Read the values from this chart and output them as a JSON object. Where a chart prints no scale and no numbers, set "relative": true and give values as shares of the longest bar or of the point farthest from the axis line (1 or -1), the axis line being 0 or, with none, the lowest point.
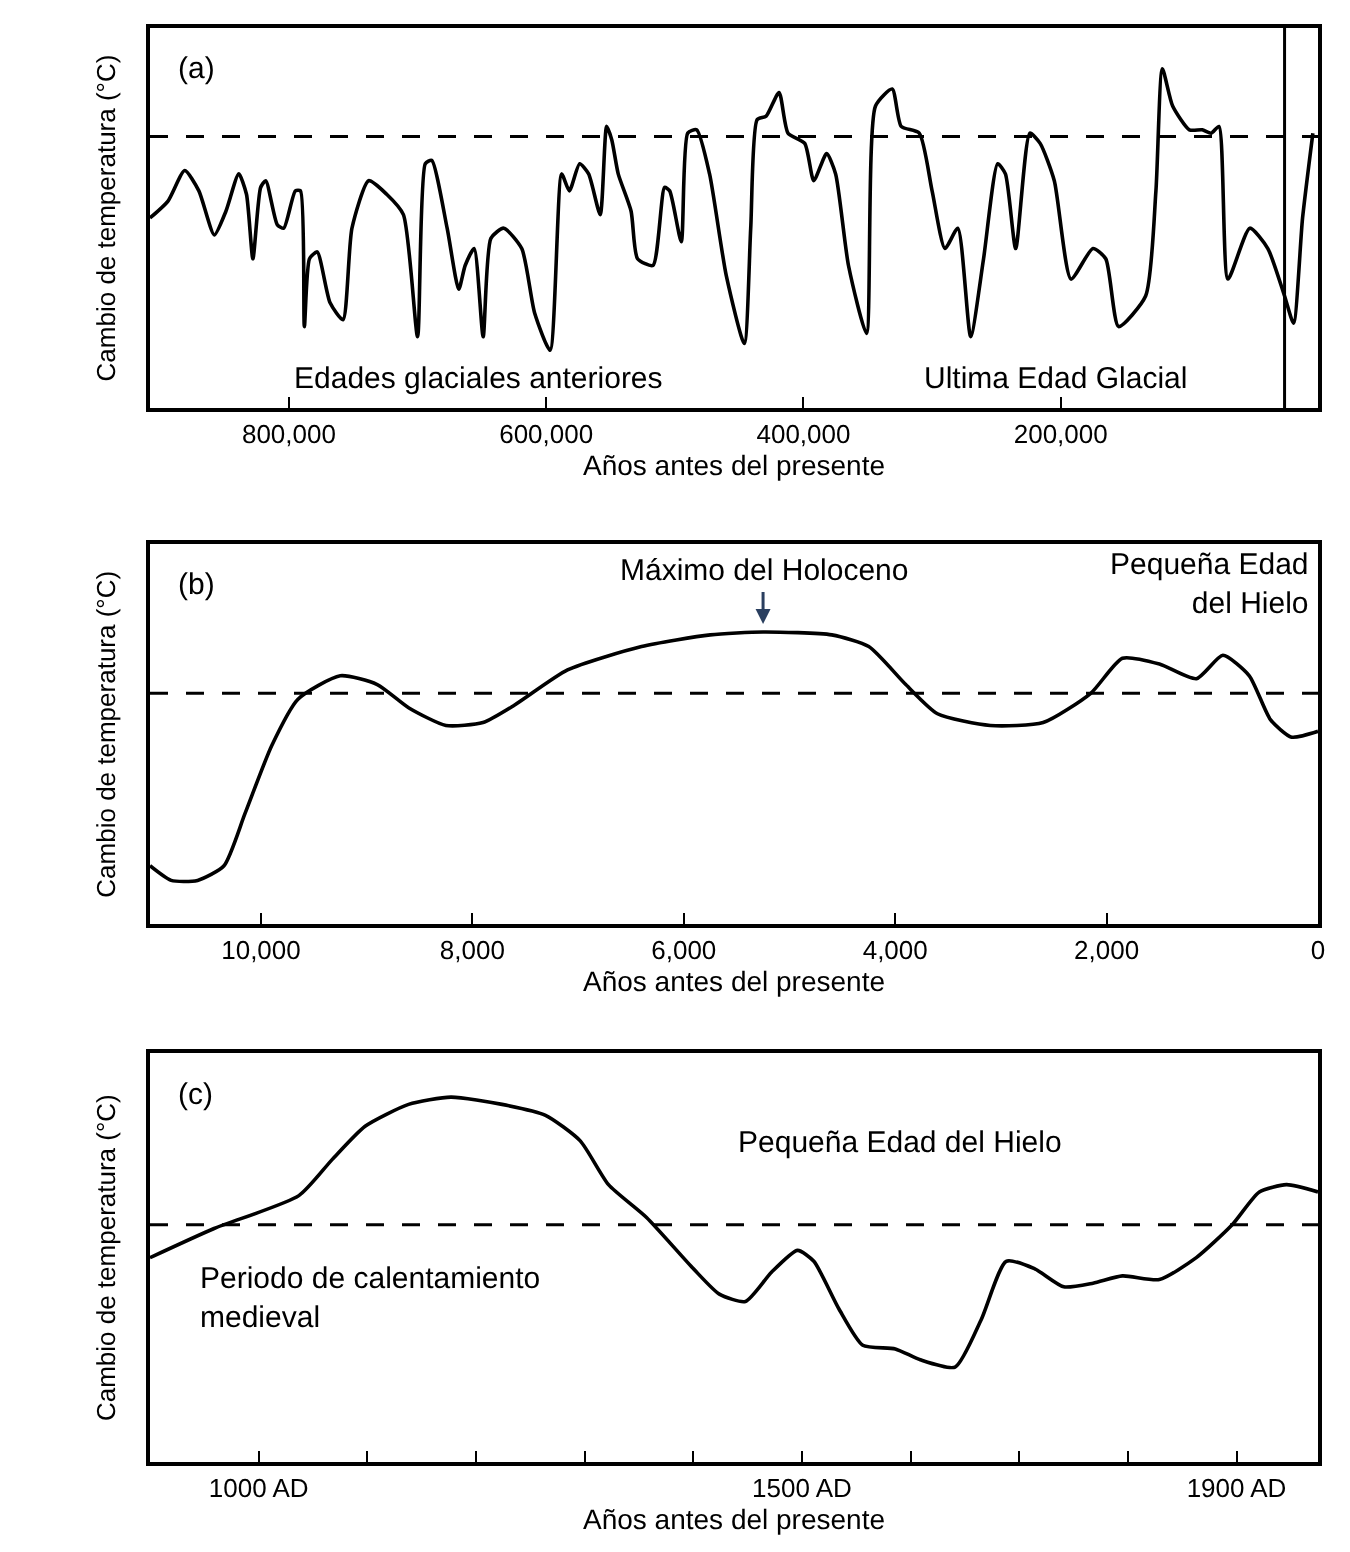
{
  "chart_data": [
    {
      "type": "line",
      "relative": true,
      "xlabel": "Años antes del presente",
      "ylabel": "Cambio de temperatura (°C)",
      "xlim": [
        908000,
        0
      ],
      "xticks": [
        {
          "value": 800000,
          "label": "800,000"
        },
        {
          "value": 600000,
          "label": "600,000"
        },
        {
          "value": 400000,
          "label": "400,000"
        },
        {
          "value": 200000,
          "label": "200,000"
        }
      ],
      "marker": "none",
      "line_style": "solid",
      "annotations": [
        "(a)",
        "Edades glaciales anteriores",
        "Ultima Edad Glacial"
      ],
      "ref_lines": [
        {
          "axis": "y",
          "value": 0.8,
          "line_style": "dashed"
        },
        {
          "axis": "x",
          "value": 26000,
          "line_style": "solid"
        }
      ],
      "series": [
        {
          "color": "#000000",
          "x": [
            908000,
            894000,
            881000,
            870000,
            858000,
            849000,
            839000,
            833000,
            828000,
            822000,
            818000,
            809000,
            804000,
            795000,
            791000,
            788000,
            784000,
            778000,
            768000,
            758000,
            751000,
            738000,
            724000,
            711000,
            700000,
            694000,
            689000,
            677000,
            668000,
            663000,
            656000,
            649000,
            643000,
            633000,
            619000,
            609000,
            597000,
            588000,
            582000,
            574000,
            567000,
            558000,
            553000,
            549000,
            544000,
            534000,
            529000,
            517000,
            508000,
            504000,
            495000,
            490000,
            483000,
            473000,
            460000,
            446000,
            441000,
            436000,
            429000,
            419000,
            412000,
            399000,
            392000,
            382000,
            375000,
            365000,
            351000,
            344000,
            331000,
            324000,
            310000,
            300000,
            290000,
            280000,
            270000,
            260000,
            249000,
            243000,
            235000,
            224000,
            216000,
            205000,
            192000,
            175000,
            165000,
            155000,
            134000,
            126000,
            121000,
            113000,
            100000,
            90000,
            83000,
            77000,
            70000,
            53000,
            39000,
            26000,
            19000,
            12000,
            4000
          ],
          "values": [
            0.56,
            0.61,
            0.7,
            0.64,
            0.51,
            0.58,
            0.69,
            0.63,
            0.44,
            0.65,
            0.67,
            0.54,
            0.53,
            0.64,
            0.64,
            0.24,
            0.44,
            0.46,
            0.31,
            0.26,
            0.53,
            0.67,
            0.63,
            0.57,
            0.21,
            0.72,
            0.73,
            0.53,
            0.35,
            0.42,
            0.47,
            0.21,
            0.5,
            0.53,
            0.47,
            0.28,
            0.17,
            0.69,
            0.64,
            0.72,
            0.69,
            0.57,
            0.83,
            0.79,
            0.69,
            0.58,
            0.44,
            0.42,
            0.65,
            0.64,
            0.49,
            0.81,
            0.82,
            0.69,
            0.39,
            0.19,
            0.53,
            0.85,
            0.86,
            0.93,
            0.81,
            0.78,
            0.67,
            0.75,
            0.69,
            0.42,
            0.22,
            0.89,
            0.94,
            0.83,
            0.81,
            0.64,
            0.47,
            0.53,
            0.21,
            0.44,
            0.72,
            0.69,
            0.47,
            0.81,
            0.78,
            0.67,
            0.38,
            0.47,
            0.44,
            0.24,
            0.33,
            0.64,
            1.0,
            0.89,
            0.82,
            0.82,
            0.81,
            0.83,
            0.38,
            0.53,
            0.47,
            0.33,
            0.25,
            0.56,
            0.81
          ]
        }
      ]
    },
    {
      "type": "line",
      "relative": true,
      "xlabel": "Años antes del presente",
      "ylabel": "Cambio de temperatura (°C)",
      "xlim": [
        11050,
        0
      ],
      "xticks": [
        {
          "value": 10000,
          "label": "10,000"
        },
        {
          "value": 8000,
          "label": "8,000"
        },
        {
          "value": 6000,
          "label": "6,000"
        },
        {
          "value": 4000,
          "label": "4,000"
        },
        {
          "value": 2000,
          "label": "2,000"
        },
        0
      ],
      "marker": "none",
      "line_style": "solid",
      "annotations": [
        "(b)",
        {
          "text": "Máximo del Holoceno",
          "x": 5250,
          "y": 1.0
        },
        "Pequeña Edad\ndel Hielo"
      ],
      "ref_lines": [
        {
          "axis": "y",
          "value": 0.79,
          "line_style": "dashed"
        }
      ],
      "series": [
        {
          "color": "#000000",
          "x": [
            11050,
            10850,
            10600,
            10350,
            10150,
            9900,
            9650,
            9250,
            8900,
            8600,
            8250,
            7900,
            7600,
            7100,
            6400,
            5750,
            5250,
            4600,
            4250,
            3900,
            3600,
            3100,
            2600,
            2150,
            1850,
            1500,
            1150,
            900,
            650,
            450,
            250,
            0
          ],
          "values": [
            0.2,
            0.15,
            0.15,
            0.2,
            0.38,
            0.61,
            0.77,
            0.85,
            0.82,
            0.74,
            0.68,
            0.69,
            0.75,
            0.87,
            0.95,
            0.99,
            1.0,
            0.99,
            0.95,
            0.82,
            0.72,
            0.68,
            0.69,
            0.79,
            0.91,
            0.89,
            0.84,
            0.92,
            0.85,
            0.7,
            0.64,
            0.66
          ]
        }
      ]
    },
    {
      "type": "line",
      "relative": true,
      "xlabel": "Años antes del presente",
      "ylabel": "Cambio de temperatura (°C)",
      "xlim": [
        900,
        1975
      ],
      "xticks": [
        {
          "value": 1000,
          "label": "1000 AD"
        },
        {
          "value": 1100,
          "label": null
        },
        {
          "value": 1200,
          "label": null
        },
        {
          "value": 1300,
          "label": null
        },
        {
          "value": 1400,
          "label": null
        },
        {
          "value": 1500,
          "label": "1500 AD"
        },
        {
          "value": 1600,
          "label": null
        },
        {
          "value": 1700,
          "label": null
        },
        {
          "value": 1800,
          "label": null
        },
        {
          "value": 1900,
          "label": "1900 AD"
        }
      ],
      "marker": "none",
      "line_style": "solid",
      "annotations": [
        "(c)",
        "Pequeña Edad del Hielo",
        "Periodo de calentamiento\nmedieval"
      ],
      "ref_lines": [
        {
          "axis": "y",
          "value": 0.65,
          "line_style": "dashed"
        }
      ],
      "series": [
        {
          "color": "#000000",
          "x": [
            900,
            959,
            1037,
            1068,
            1098,
            1138,
            1177,
            1224,
            1264,
            1296,
            1322,
            1357,
            1400,
            1424,
            1448,
            1472,
            1496,
            1511,
            1534,
            1556,
            1586,
            1609,
            1641,
            1665,
            1688,
            1714,
            1741,
            1768,
            1795,
            1829,
            1863,
            1896,
            1921,
            1946,
            1975
          ],
          "values": [
            0.56,
            0.64,
            0.73,
            0.83,
            0.92,
            0.98,
            1.0,
            0.98,
            0.95,
            0.88,
            0.76,
            0.67,
            0.53,
            0.46,
            0.44,
            0.52,
            0.58,
            0.55,
            0.42,
            0.32,
            0.31,
            0.28,
            0.26,
            0.39,
            0.55,
            0.53,
            0.48,
            0.49,
            0.51,
            0.5,
            0.56,
            0.65,
            0.74,
            0.76,
            0.74
          ]
        }
      ]
    }
  ]
}
